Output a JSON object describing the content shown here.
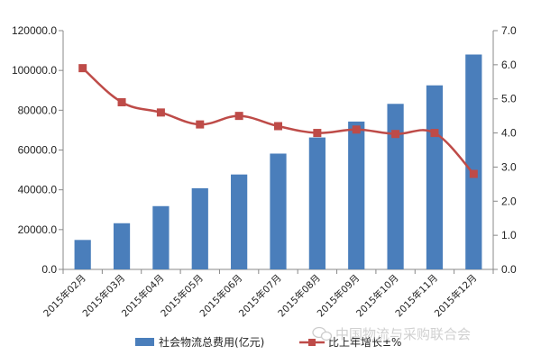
{
  "chart_data": {
    "type": "bar",
    "categories": [
      "2015年02月",
      "2015年03月",
      "2015年04月",
      "2015年05月",
      "2015年06月",
      "2015年07月",
      "2015年08月",
      "2015年09月",
      "2015年10月",
      "2015年11月",
      "2015年12月"
    ],
    "series": [
      {
        "name": "社会物流总费用(亿元)",
        "type": "bar",
        "axis": "left",
        "color": "#4a7ebb",
        "values": [
          14800,
          23200,
          31800,
          40800,
          47700,
          58200,
          66300,
          74300,
          83200,
          92500,
          108000
        ]
      },
      {
        "name": "比上年增长±%",
        "type": "line",
        "axis": "right",
        "color": "#be4b48",
        "values": [
          5.9,
          4.9,
          4.6,
          4.25,
          4.5,
          4.2,
          4.0,
          4.1,
          3.97,
          4.0,
          2.8
        ]
      }
    ],
    "left_axis": {
      "ylim": [
        0,
        120000
      ],
      "ticks": [
        "0.0",
        "20000.0",
        "40000.0",
        "60000.0",
        "80000.0",
        "100000.0",
        "120000.0"
      ]
    },
    "right_axis": {
      "ylim": [
        0,
        7
      ],
      "ticks": [
        "0.0",
        "1.0",
        "2.0",
        "3.0",
        "4.0",
        "5.0",
        "6.0",
        "7.0"
      ]
    },
    "grid": false,
    "legend_position": "bottom"
  },
  "watermark": {
    "text": "中国物流与采购联合会",
    "icon": "wechat-icon"
  }
}
